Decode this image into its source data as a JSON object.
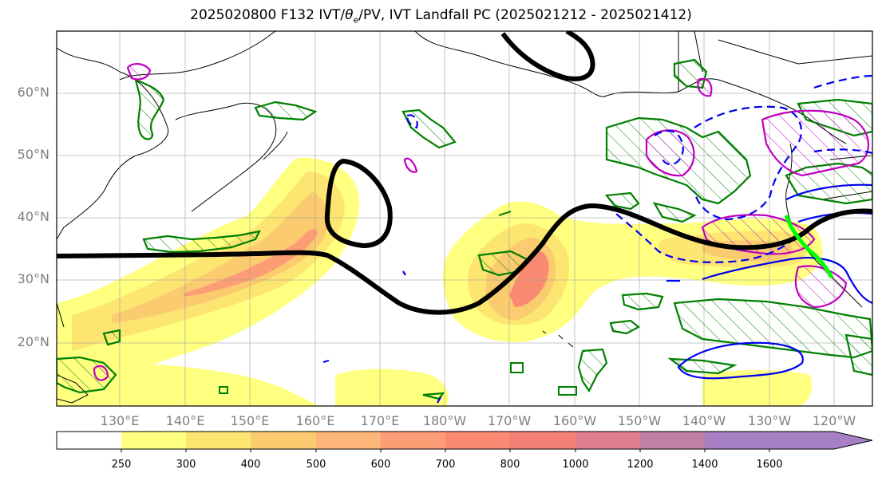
{
  "title": "2025020800 F132 IVT/θe/PV, IVT Landfall PC (2025021212 - 2025021412)",
  "title_parts": {
    "pre": "2025020800 F132 IVT/",
    "theta": "θ",
    "sub": "e",
    "post": "/PV, IVT Landfall PC (2025021212 - 2025021412)"
  },
  "lat_labels": [
    "60°N",
    "50°N",
    "40°N",
    "30°N",
    "20°N"
  ],
  "lon_labels": [
    "130°E",
    "140°E",
    "150°E",
    "160°E",
    "170°E",
    "180°W",
    "170°W",
    "160°W",
    "150°W",
    "140°W",
    "130°W",
    "120°W"
  ],
  "colorbar": {
    "ticks": [
      "250",
      "300",
      "400",
      "500",
      "600",
      "700",
      "800",
      "1000",
      "1200",
      "1400",
      "1600"
    ],
    "colors": [
      "#ffffff",
      "#ffff80",
      "#fde572",
      "#fbcb70",
      "#fdb579",
      "#fd9d75",
      "#fb8a72",
      "#f38077",
      "#df7f8d",
      "#c07fa5",
      "#a77fc5"
    ]
  },
  "colors": {
    "ivt_low": "#ffff80",
    "ivt_mid": "#fdb579",
    "ivt_high": "#fb8a72",
    "theta_e": "#000000",
    "pv_green": "#008000",
    "pv_blue": "#0000ee",
    "pv_magenta": "#c000c0",
    "landfall": "#00ff00",
    "axis_label": "#7f7f7f"
  }
}
